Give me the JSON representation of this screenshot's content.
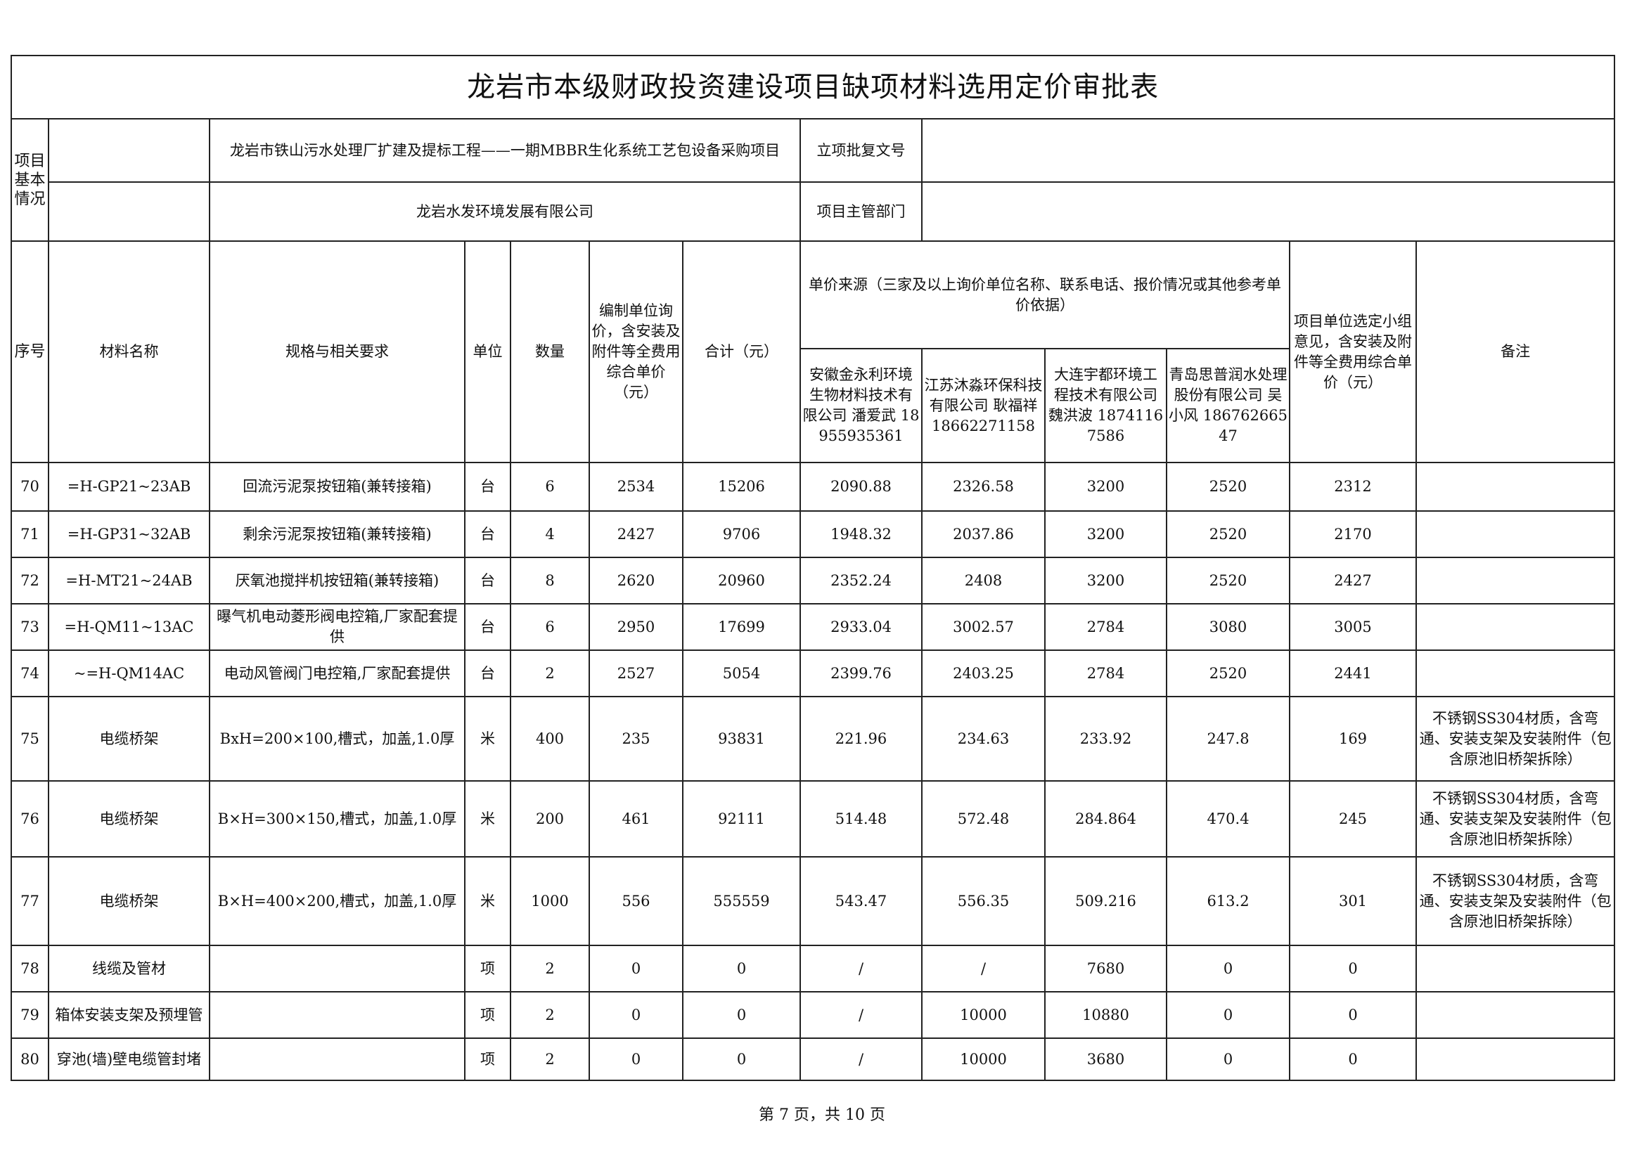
{
  "title": "龙岩市本级财政投资建设项目缺项材料选用定价审批表",
  "basic_info": {
    "section_label": "项目基本情况",
    "project_name": "龙岩市铁山污水处理厂扩建及提标工程——一期MBBR生化系统工艺包设备采购项目",
    "approval_doc_label": "立项批复文号",
    "approval_doc_value": "",
    "unit_name": "龙岩水发环境发展有限公司",
    "dept_label": "项目主管部门",
    "dept_value": ""
  },
  "headers": {
    "seq": "序号",
    "material": "材料名称",
    "spec": "规格与相关要求",
    "unit": "单位",
    "qty": "数量",
    "unit_price": "编制单位询价，含安装及附件等全费用综合单价（元）",
    "total": "合计（元）",
    "source": "单价来源（三家及以上询价单位名称、联系电话、报价情况或其他参考单价依据）",
    "suppliers": [
      "安徽金永利环境生物材料技术有限公司 潘爱武 18955935361",
      "江苏沐淼环保科技有限公司 耿福祥 18662271158",
      "大连宇都环境工程技术有限公司 魏洪波 18741167586",
      "青岛思普润水处理股份有限公司 吴小风 18676266547"
    ],
    "selected": "项目单位选定小组意见，含安装及附件等全费用综合单价（元）",
    "remark": "备注"
  },
  "rows": [
    {
      "seq": "70",
      "material": "=H-GP21~23AB",
      "spec": "回流污泥泵按钮箱(兼转接箱)",
      "unit": "台",
      "qty": "6",
      "price": "2534",
      "total": "15206",
      "s1": "2090.88",
      "s2": "2326.58",
      "s3": "3200",
      "s4": "2520",
      "selected": "2312",
      "remark": ""
    },
    {
      "seq": "71",
      "material": "=H-GP31~32AB",
      "spec": "剩余污泥泵按钮箱(兼转接箱)",
      "unit": "台",
      "qty": "4",
      "price": "2427",
      "total": "9706",
      "s1": "1948.32",
      "s2": "2037.86",
      "s3": "3200",
      "s4": "2520",
      "selected": "2170",
      "remark": ""
    },
    {
      "seq": "72",
      "material": "=H-MT21~24AB",
      "spec": "厌氧池搅拌机按钮箱(兼转接箱)",
      "unit": "台",
      "qty": "8",
      "price": "2620",
      "total": "20960",
      "s1": "2352.24",
      "s2": "2408",
      "s3": "3200",
      "s4": "2520",
      "selected": "2427",
      "remark": ""
    },
    {
      "seq": "73",
      "material": "=H-QM11~13AC",
      "spec": "曝气机电动菱形阀电控箱,厂家配套提供",
      "unit": "台",
      "qty": "6",
      "price": "2950",
      "total": "17699",
      "s1": "2933.04",
      "s2": "3002.57",
      "s3": "2784",
      "s4": "3080",
      "selected": "3005",
      "remark": ""
    },
    {
      "seq": "74",
      "material": "~=H-QM14AC",
      "spec": "电动风管阀门电控箱,厂家配套提供",
      "unit": "台",
      "qty": "2",
      "price": "2527",
      "total": "5054",
      "s1": "2399.76",
      "s2": "2403.25",
      "s3": "2784",
      "s4": "2520",
      "selected": "2441",
      "remark": ""
    },
    {
      "seq": "75",
      "material": "电缆桥架",
      "spec": "BxH=200×100,槽式，加盖,1.0厚",
      "unit": "米",
      "qty": "400",
      "price": "235",
      "total": "93831",
      "s1": "221.96",
      "s2": "234.63",
      "s3": "233.92",
      "s4": "247.8",
      "selected": "169",
      "remark": "不锈钢SS304材质，含弯通、安装支架及安装附件（包含原池旧桥架拆除）"
    },
    {
      "seq": "76",
      "material": "电缆桥架",
      "spec": "B×H=300×150,槽式，加盖,1.0厚",
      "unit": "米",
      "qty": "200",
      "price": "461",
      "total": "92111",
      "s1": "514.48",
      "s2": "572.48",
      "s3": "284.864",
      "s4": "470.4",
      "selected": "245",
      "remark": "不锈钢SS304材质，含弯通、安装支架及安装附件（包含原池旧桥架拆除）"
    },
    {
      "seq": "77",
      "material": "电缆桥架",
      "spec": "B×H=400×200,槽式，加盖,1.0厚",
      "unit": "米",
      "qty": "1000",
      "price": "556",
      "total": "555559",
      "s1": "543.47",
      "s2": "556.35",
      "s3": "509.216",
      "s4": "613.2",
      "selected": "301",
      "remark": "不锈钢SS304材质，含弯通、安装支架及安装附件（包含原池旧桥架拆除）"
    },
    {
      "seq": "78",
      "material": "线缆及管材",
      "spec": "",
      "unit": "项",
      "qty": "2",
      "price": "0",
      "total": "0",
      "s1": "/",
      "s2": "/",
      "s3": "7680",
      "s4": "0",
      "selected": "0",
      "remark": ""
    },
    {
      "seq": "79",
      "material": "箱体安装支架及预埋管",
      "spec": "",
      "unit": "项",
      "qty": "2",
      "price": "0",
      "total": "0",
      "s1": "/",
      "s2": "10000",
      "s3": "10880",
      "s4": "0",
      "selected": "0",
      "remark": ""
    },
    {
      "seq": "80",
      "material": "穿池(墙)壁电缆管封堵",
      "spec": "",
      "unit": "项",
      "qty": "2",
      "price": "0",
      "total": "0",
      "s1": "/",
      "s2": "10000",
      "s3": "3680",
      "s4": "0",
      "selected": "0",
      "remark": ""
    }
  ],
  "footer": "第 7 页，共 10 页"
}
